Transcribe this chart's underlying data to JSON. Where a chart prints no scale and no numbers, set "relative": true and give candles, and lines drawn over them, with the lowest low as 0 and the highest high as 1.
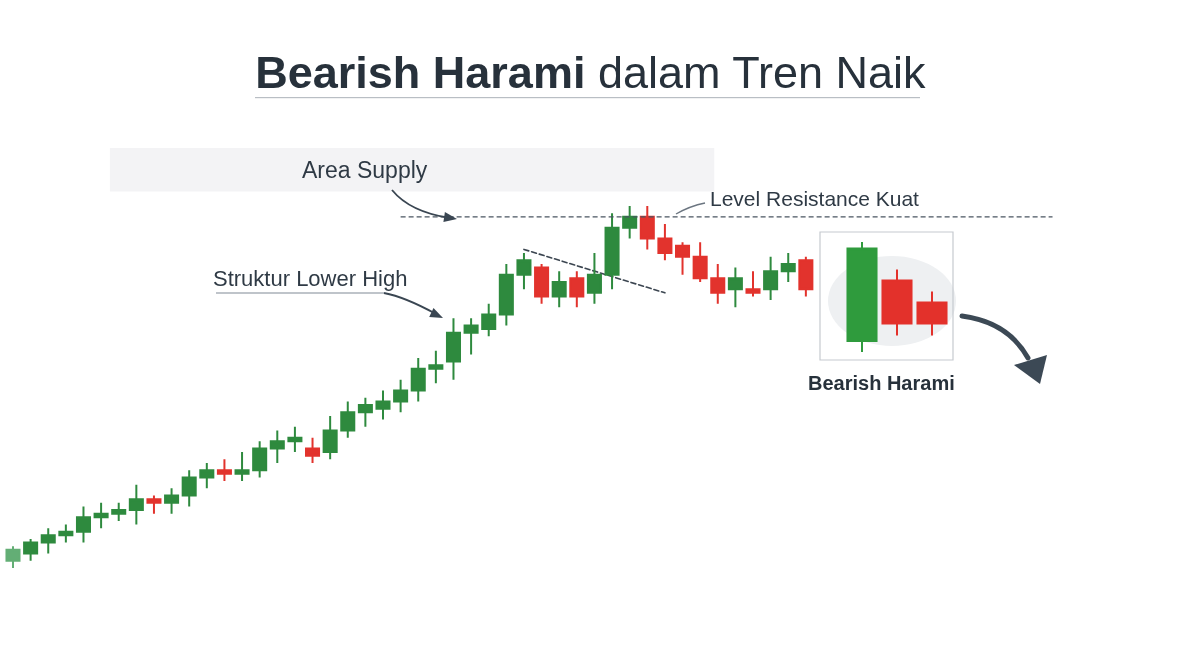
{
  "chart_data": [
    {
      "type": "candlestick",
      "title": "Bearish Harami dalam Tren Naik",
      "relative": true,
      "categories": [
        null,
        null,
        null,
        null,
        null,
        null,
        null,
        null,
        null,
        null,
        null,
        null,
        null,
        null,
        null,
        null,
        null,
        null,
        null,
        null,
        null,
        null,
        null,
        null,
        null,
        null,
        null,
        null,
        null,
        null,
        null,
        null,
        null,
        null,
        null,
        null,
        null,
        null,
        null,
        null,
        null,
        null,
        null,
        null,
        null,
        null
      ],
      "ohlc": [
        [
          0.02,
          0.06,
          0,
          0.05
        ],
        [
          0.04,
          0.08,
          0.02,
          0.07
        ],
        [
          0.07,
          0.11,
          0.04,
          0.09
        ],
        [
          0.09,
          0.12,
          0.07,
          0.1
        ],
        [
          0.1,
          0.17,
          0.07,
          0.14
        ],
        [
          0.14,
          0.18,
          0.11,
          0.15
        ],
        [
          0.15,
          0.18,
          0.13,
          0.16
        ],
        [
          0.16,
          0.23,
          0.12,
          0.19
        ],
        [
          0.19,
          0.2,
          0.15,
          0.18
        ],
        [
          0.18,
          0.22,
          0.15,
          0.2
        ],
        [
          0.2,
          0.27,
          0.17,
          0.25
        ],
        [
          0.25,
          0.29,
          0.22,
          0.27
        ],
        [
          0.27,
          0.3,
          0.24,
          0.26
        ],
        [
          0.26,
          0.32,
          0.24,
          0.27
        ],
        [
          0.27,
          0.35,
          0.25,
          0.33
        ],
        [
          0.33,
          0.38,
          0.29,
          0.35
        ],
        [
          0.35,
          0.39,
          0.32,
          0.36
        ],
        [
          0.33,
          0.36,
          0.29,
          0.31
        ],
        [
          0.32,
          0.42,
          0.3,
          0.38
        ],
        [
          0.38,
          0.46,
          0.36,
          0.43
        ],
        [
          0.43,
          0.47,
          0.39,
          0.45
        ],
        [
          0.44,
          0.49,
          0.41,
          0.46
        ],
        [
          0.46,
          0.52,
          0.43,
          0.49
        ],
        [
          0.49,
          0.58,
          0.46,
          0.55
        ],
        [
          0.55,
          0.6,
          0.51,
          0.56
        ],
        [
          0.57,
          0.69,
          0.52,
          0.65
        ],
        [
          0.65,
          0.69,
          0.59,
          0.67
        ],
        [
          0.66,
          0.73,
          0.64,
          0.7
        ],
        [
          0.7,
          0.84,
          0.67,
          0.81
        ],
        [
          0.81,
          0.87,
          0.77,
          0.85
        ],
        [
          0.83,
          0.84,
          0.73,
          0.75
        ],
        [
          0.75,
          0.82,
          0.72,
          0.79
        ],
        [
          0.8,
          0.82,
          0.72,
          0.75
        ],
        [
          0.76,
          0.87,
          0.73,
          0.81
        ],
        [
          0.81,
          0.98,
          0.77,
          0.94
        ],
        [
          0.94,
          1,
          0.91,
          0.97
        ],
        [
          0.97,
          1,
          0.88,
          0.91
        ],
        [
          0.91,
          0.95,
          0.85,
          0.87
        ],
        [
          0.89,
          0.9,
          0.81,
          0.86
        ],
        [
          0.86,
          0.9,
          0.79,
          0.8
        ],
        [
          0.8,
          0.84,
          0.73,
          0.76
        ],
        [
          0.77,
          0.83,
          0.72,
          0.8
        ],
        [
          0.77,
          0.82,
          0.75,
          0.76
        ],
        [
          0.77,
          0.86,
          0.74,
          0.82
        ],
        [
          0.82,
          0.87,
          0.79,
          0.84
        ],
        [
          0.85,
          0.86,
          0.75,
          0.77
        ]
      ],
      "colors": [
        "#63ae75",
        "#2e8a3e",
        "#2e8a3e",
        "#2e8a3e",
        "#2e8a3e",
        "#2e8a3e",
        "#2e8a3e",
        "#2e8a3e",
        "#e2332d",
        "#2e8a3e",
        "#2e8a3e",
        "#2e8a3e",
        "#e2332d",
        "#2e8a3e",
        "#2e8a3e",
        "#2e8a3e",
        "#2e8a3e",
        "#e2332d",
        "#2e8a3e",
        "#2e8a3e",
        "#2e8a3e",
        "#2e8a3e",
        "#2e8a3e",
        "#2e8a3e",
        "#2e8a3e",
        "#2e8a3e",
        "#2e8a3e",
        "#2e8a3e",
        "#2e8a3e",
        "#2e8a3e",
        "#e2332d",
        "#2e8a3e",
        "#e2332d",
        "#2e8a3e",
        "#2e8a3e",
        "#2e8a3e",
        "#e2332d",
        "#e2332d",
        "#e2332d",
        "#e2332d",
        "#e2332d",
        "#2e8a3e",
        "#e2332d",
        "#2e8a3e",
        "#2e8a3e",
        "#e2332d"
      ],
      "series": [
        {
          "type": "line",
          "values": [
            null,
            null,
            null,
            null,
            null,
            null,
            null,
            null,
            null,
            null,
            null,
            null,
            null,
            null,
            null,
            null,
            null,
            null,
            null,
            null,
            null,
            null,
            null,
            null,
            null,
            null,
            null,
            null,
            null,
            0.88,
            null,
            null,
            null,
            null,
            null,
            null,
            null,
            0.76,
            null,
            null,
            null,
            null,
            null,
            null,
            null,
            null
          ],
          "color": "#3b4550",
          "line_style": "dashed"
        }
      ],
      "ref_lines": [
        {
          "axis": "y",
          "value": 0.97,
          "label": "Level Resistance Kuat",
          "color": "#4a5561",
          "line_style": "dashed"
        }
      ],
      "bands": [
        {
          "axis": "y",
          "from": 1.04,
          "to": 1.16,
          "label": "Area Supply",
          "color": "#f3f3f5"
        }
      ],
      "annotations": [
        "Struktur Lower High"
      ]
    },
    {
      "type": "candlestick",
      "relative": true,
      "xlabel": "Bearish Harami",
      "categories": [
        null,
        null,
        null
      ],
      "ohlc": [
        [
          0.1,
          1,
          0,
          0.94
        ],
        [
          0.65,
          0.75,
          0.15,
          0.26
        ],
        [
          0.45,
          0.55,
          0.15,
          0.26
        ]
      ],
      "colors": [
        "#2f9b3d",
        "#e3312b",
        "#e3312b"
      ]
    }
  ]
}
